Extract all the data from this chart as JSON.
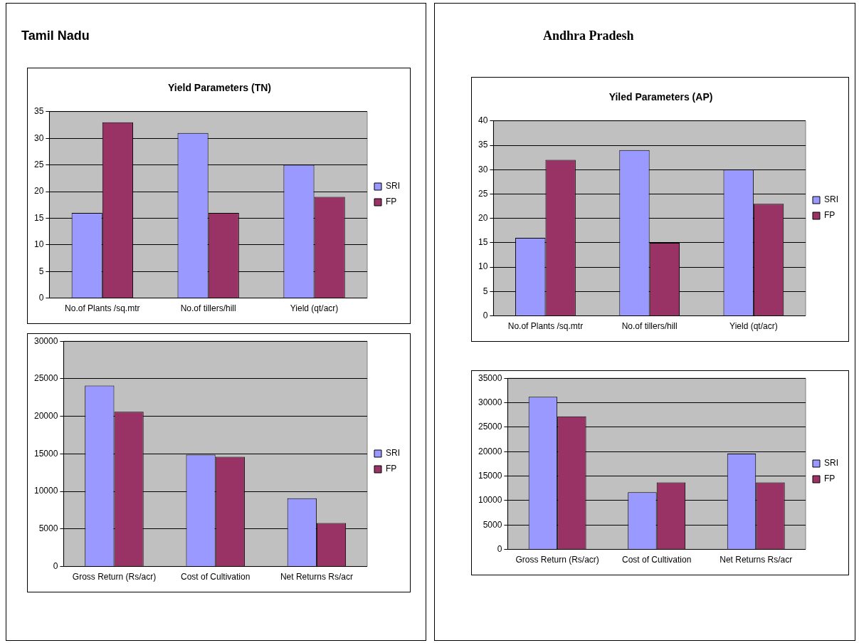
{
  "chart_data": [
    {
      "type": "bar",
      "title": "Yield Parameters (TN)",
      "annotations": [
        "Tamil Nadu"
      ],
      "categories": [
        "No.of Plants /sq.mtr",
        "No.of tillers/hill",
        "Yield (qt/acr)"
      ],
      "series": [
        {
          "name": "SRI",
          "color": "#9999ff",
          "values": [
            16,
            31,
            25
          ]
        },
        {
          "name": "FP",
          "color": "#993366",
          "values": [
            33,
            16,
            19
          ]
        }
      ],
      "ylim": [
        0,
        35
      ],
      "yticks": [
        0,
        5,
        10,
        15,
        20,
        25,
        30,
        35
      ],
      "grid": "y",
      "legend": "right"
    },
    {
      "type": "bar",
      "title": "Yiled Parameters (AP)",
      "annotations": [
        "Andhra Pradesh"
      ],
      "categories": [
        "No.of Plants /sq.mtr",
        "No.of tillers/hill",
        "Yield (qt/acr)"
      ],
      "series": [
        {
          "name": "SRI",
          "color": "#9999ff",
          "values": [
            16,
            34,
            30
          ]
        },
        {
          "name": "FP",
          "color": "#993366",
          "values": [
            32,
            15,
            23
          ]
        }
      ],
      "ylim": [
        0,
        40
      ],
      "yticks": [
        0,
        5,
        10,
        15,
        20,
        25,
        30,
        35,
        40
      ],
      "grid": "y",
      "legend": "right"
    },
    {
      "type": "bar",
      "categories": [
        "Gross Return (Rs/acr)",
        "Cost of Cultivation",
        "Net Returns Rs/acr"
      ],
      "series": [
        {
          "name": "SRI",
          "color": "#9999ff",
          "values": [
            24100,
            14900,
            9100
          ]
        },
        {
          "name": "FP",
          "color": "#993366",
          "values": [
            20600,
            14600,
            5800
          ]
        }
      ],
      "ylim": [
        0,
        30000
      ],
      "yticks": [
        0,
        5000,
        10000,
        15000,
        20000,
        25000,
        30000
      ],
      "grid": "y",
      "legend": "right"
    },
    {
      "type": "bar",
      "categories": [
        "Gross Return (Rs/acr)",
        "Cost of Cultivation",
        "Net Returns Rs/acr"
      ],
      "series": [
        {
          "name": "SRI",
          "color": "#9999ff",
          "values": [
            31200,
            11700,
            19600
          ]
        },
        {
          "name": "FP",
          "color": "#993366",
          "values": [
            27200,
            13700,
            13700
          ]
        }
      ],
      "ylim": [
        0,
        35000
      ],
      "yticks": [
        0,
        5000,
        10000,
        15000,
        20000,
        25000,
        30000,
        35000
      ],
      "grid": "y",
      "legend": "right"
    }
  ]
}
